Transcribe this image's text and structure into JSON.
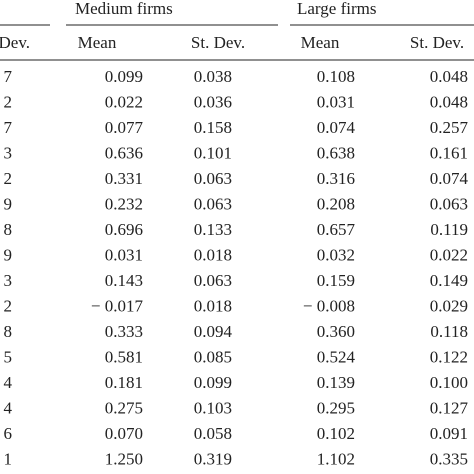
{
  "table": {
    "groups": [
      "Medium firms",
      "Large firms"
    ],
    "columns": [
      "Dev.",
      "Mean",
      "St. Dev.",
      "Mean",
      "St. Dev."
    ],
    "rows": [
      [
        "7",
        "0.099",
        "0.038",
        "0.108",
        "0.048"
      ],
      [
        "2",
        "0.022",
        "0.036",
        "0.031",
        "0.048"
      ],
      [
        "7",
        "0.077",
        "0.158",
        "0.074",
        "0.257"
      ],
      [
        "3",
        "0.636",
        "0.101",
        "0.638",
        "0.161"
      ],
      [
        "2",
        "0.331",
        "0.063",
        "0.316",
        "0.074"
      ],
      [
        "9",
        "0.232",
        "0.063",
        "0.208",
        "0.063"
      ],
      [
        "8",
        "0.696",
        "0.133",
        "0.657",
        "0.119"
      ],
      [
        "9",
        "0.031",
        "0.018",
        "0.032",
        "0.022"
      ],
      [
        "3",
        "0.143",
        "0.063",
        "0.159",
        "0.149"
      ],
      [
        "2",
        "− 0.017",
        "0.018",
        "− 0.008",
        "0.029"
      ],
      [
        "8",
        "0.333",
        "0.094",
        "0.360",
        "0.118"
      ],
      [
        "5",
        "0.581",
        "0.085",
        "0.524",
        "0.122"
      ],
      [
        "4",
        "0.181",
        "0.099",
        "0.139",
        "0.100"
      ],
      [
        "4",
        "0.275",
        "0.103",
        "0.295",
        "0.127"
      ],
      [
        "6",
        "0.070",
        "0.058",
        "0.102",
        "0.091"
      ],
      [
        "1",
        "1.250",
        "0.319",
        "1.102",
        "0.335"
      ]
    ]
  }
}
